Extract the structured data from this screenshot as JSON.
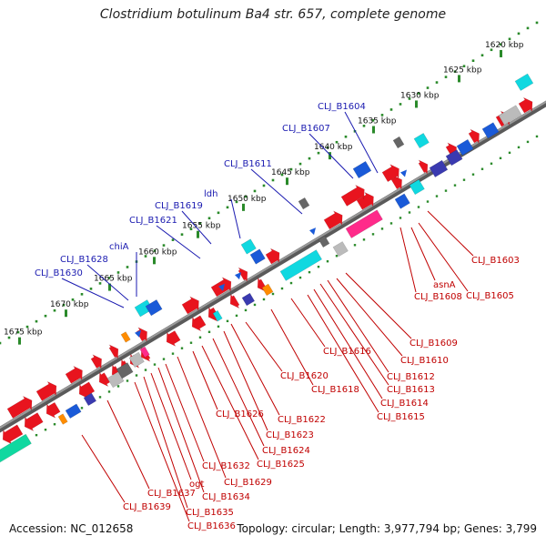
{
  "title": "Clostridium botulinum Ba4 str. 657, complete genome",
  "footer": {
    "accession": "Accession: NC_012658",
    "summary": "Topology: circular; Length: 3,977,794 bp; Genes: 3,799"
  },
  "colors": {
    "backbone": "#777777",
    "ruler_dots": "#2a8a2a",
    "forward_gene": "#e8141e",
    "reverse_gene_label": "#c00000",
    "top_label": "#1a1ab0",
    "cyan": "#10d8e0",
    "teal": "#20c0a0",
    "magenta": "#ff2a8a",
    "navy": "#3a3ab0",
    "grey": "#888888",
    "orange": "#ff8c00",
    "blue": "#1a5ad8"
  },
  "ruler_ticks": [
    "1620 kbp",
    "1625 kbp",
    "1630 kbp",
    "1635 kbp",
    "1640 kbp",
    "1645 kbp",
    "1650 kbp",
    "1655 kbp",
    "1660 kbp",
    "1665 kbp",
    "1670 kbp",
    "1675 kbp"
  ],
  "top_labels": [
    "CLJ_B1604",
    "CLJ_B1607",
    "CLJ_B1611",
    "ldh",
    "CLJ_B1619",
    "CLJ_B1621",
    "chiA",
    "CLJ_B1628",
    "CLJ_B1630"
  ],
  "bottom_labels": [
    "CLJ_B1603",
    "asnA",
    "CLJ_B1605",
    "CLJ_B1608",
    "CLJ_B1609",
    "CLJ_B1610",
    "CLJ_B1612",
    "CLJ_B1613",
    "CLJ_B1614",
    "CLJ_B1615",
    "CLJ_B1616",
    "CLJ_B1618",
    "CLJ_B1620",
    "CLJ_B1622",
    "CLJ_B1623",
    "CLJ_B1624",
    "CLJ_B1625",
    "CLJ_B1626",
    "CLJ_B1629",
    "CLJ_B1632",
    "CLJ_B1634",
    "ogt",
    "CLJ_B1635",
    "CLJ_B1636",
    "CLJ_B1637",
    "CLJ_B1639"
  ]
}
